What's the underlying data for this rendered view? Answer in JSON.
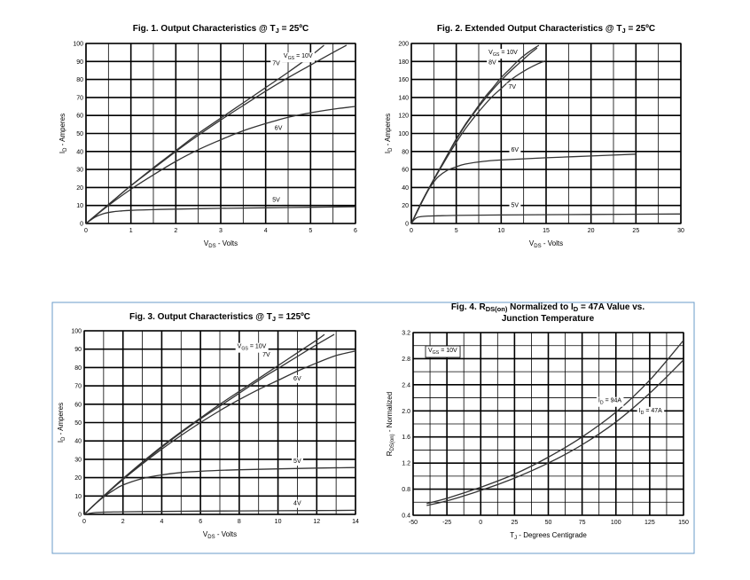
{
  "colors": {
    "frame": "#6a9bc9",
    "grid": "#000000",
    "curve": "#333333"
  },
  "chart_data": [
    {
      "type": "line",
      "title": "Fig. 1. Output Characteristics @ T",
      "title_sub": "J",
      "title_tail": " = 25ºC",
      "xlabel": "V",
      "xlabel_sub": "DS",
      "xlabel_tail": " - Volts",
      "ylabel": "I",
      "ylabel_sub": "D",
      "ylabel_tail": " - Amperes",
      "xlim": [
        0,
        6
      ],
      "ylim": [
        0,
        100
      ],
      "x_ticks": [
        0,
        1,
        2,
        3,
        4,
        5,
        6
      ],
      "y_ticks": [
        0,
        10,
        20,
        30,
        40,
        50,
        60,
        70,
        80,
        90,
        100
      ],
      "grid_x_step": 0.5,
      "grid_y_step": 10,
      "series": [
        {
          "name": "VGS = 10V",
          "x": [
            0,
            0.5,
            1,
            1.5,
            2,
            2.5,
            3,
            3.5,
            4,
            4.5,
            5,
            5.3
          ],
          "y": [
            0,
            10.5,
            21,
            31,
            40.5,
            50,
            58.5,
            67,
            75.5,
            84,
            93,
            99
          ]
        },
        {
          "name": "7V",
          "x": [
            0,
            0.5,
            1,
            1.5,
            2,
            2.5,
            3,
            3.5,
            4,
            4.5,
            5,
            5.5,
            5.8
          ],
          "y": [
            0,
            10.5,
            21,
            30.5,
            40,
            49,
            57.5,
            65.5,
            73.5,
            81,
            88,
            95,
            99
          ]
        },
        {
          "name": "6V",
          "x": [
            0,
            0.5,
            1,
            1.5,
            2,
            2.5,
            3,
            3.5,
            4,
            4.5,
            5,
            5.5,
            6
          ],
          "y": [
            0,
            10,
            19,
            27,
            34.5,
            41,
            46.5,
            51.5,
            55.5,
            59,
            61.5,
            63.5,
            65
          ]
        },
        {
          "name": "5V",
          "x": [
            0,
            0.2,
            0.4,
            0.6,
            0.8,
            1,
            1.5,
            2,
            3,
            4,
            5,
            6
          ],
          "y": [
            0,
            3.5,
            5.5,
            6.5,
            7,
            7.3,
            7.7,
            8,
            8.4,
            8.7,
            9,
            9.3
          ]
        }
      ],
      "labels": [
        {
          "text": "V",
          "sub": "GS",
          "tail": " = 10V",
          "x": 4.4,
          "y": 92,
          "legend": false
        },
        {
          "text": "7V",
          "x": 4.15,
          "y": 88
        },
        {
          "text": "6V",
          "x": 4.2,
          "y": 52
        },
        {
          "text": "5V",
          "x": 4.15,
          "y": 12
        }
      ]
    },
    {
      "type": "line",
      "title": "Fig. 2. Extended Output Characteristics @ T",
      "title_sub": "J",
      "title_tail": " = 25ºC",
      "xlabel": "V",
      "xlabel_sub": "DS",
      "xlabel_tail": " - Volts",
      "ylabel": "I",
      "ylabel_sub": "D",
      "ylabel_tail": " - Amperes",
      "xlim": [
        0,
        30
      ],
      "ylim": [
        0,
        200
      ],
      "x_ticks": [
        0,
        5,
        10,
        15,
        20,
        25,
        30
      ],
      "y_ticks": [
        0,
        20,
        40,
        60,
        80,
        100,
        120,
        140,
        160,
        180,
        200
      ],
      "grid_x_step": 2.5,
      "grid_y_step": 20,
      "series": [
        {
          "name": "VGS = 10V",
          "x": [
            0,
            1,
            2,
            3,
            4,
            5,
            6,
            7,
            8,
            9,
            10,
            11,
            12,
            13,
            14.2
          ],
          "y": [
            0,
            21,
            40,
            58,
            76,
            94,
            110,
            124,
            138,
            150,
            162,
            172,
            182,
            190,
            198
          ]
        },
        {
          "name": "8V",
          "x": [
            0,
            1,
            2,
            3,
            4,
            5,
            6,
            7,
            8,
            9,
            10,
            11,
            12,
            13,
            14
          ],
          "y": [
            0,
            21,
            40,
            58,
            76,
            93,
            109,
            123,
            136,
            148,
            159,
            169,
            178,
            187,
            195
          ]
        },
        {
          "name": "7V",
          "x": [
            0,
            1,
            2,
            3,
            4,
            5,
            6,
            7,
            8,
            9,
            10,
            11,
            12,
            13,
            14,
            15
          ],
          "y": [
            0,
            20.5,
            39.5,
            57,
            74,
            90,
            105,
            118,
            130,
            141,
            150,
            159,
            166,
            172,
            177,
            181
          ]
        },
        {
          "name": "6V",
          "x": [
            0,
            0.5,
            1,
            1.5,
            2,
            2.5,
            3,
            4,
            5,
            6,
            8,
            10,
            15,
            20,
            25
          ],
          "y": [
            0,
            10,
            20,
            30,
            39,
            46,
            52,
            59,
            63,
            66,
            69,
            70.5,
            73,
            75,
            77
          ]
        },
        {
          "name": "5V",
          "x": [
            0,
            0.3,
            0.6,
            1,
            1.5,
            2,
            3,
            5,
            10,
            20,
            30
          ],
          "y": [
            0,
            4,
            6.5,
            7.5,
            8,
            8.3,
            8.6,
            9,
            9.5,
            10,
            10.5
          ]
        }
      ],
      "labels": [
        {
          "text": "V",
          "sub": "GS",
          "tail": " = 10V",
          "x": 8.6,
          "y": 188,
          "legend": false
        },
        {
          "text": "8V",
          "x": 8.6,
          "y": 177
        },
        {
          "text": "7V",
          "x": 10.8,
          "y": 150
        },
        {
          "text": "6V",
          "x": 11.1,
          "y": 80
        },
        {
          "text": "5V",
          "x": 11.1,
          "y": 18
        }
      ]
    },
    {
      "type": "line",
      "title": "Fig. 3. Output Characteristics @ T",
      "title_sub": "J",
      "title_tail": " = 125ºC",
      "xlabel": "V",
      "xlabel_sub": "DS",
      "xlabel_tail": " - Volts",
      "ylabel": "I",
      "ylabel_sub": "D",
      "ylabel_tail": " - Amperes",
      "xlim": [
        0,
        14
      ],
      "ylim": [
        0,
        100
      ],
      "x_ticks": [
        0,
        2,
        4,
        6,
        8,
        10,
        12,
        14
      ],
      "y_ticks": [
        0,
        10,
        20,
        30,
        40,
        50,
        60,
        70,
        80,
        90,
        100
      ],
      "grid_x_step": 1,
      "grid_y_step": 10,
      "series": [
        {
          "name": "VGS = 10V",
          "x": [
            0,
            1,
            2,
            3,
            4,
            5,
            6,
            7,
            8,
            9,
            10,
            11,
            12,
            12.4
          ],
          "y": [
            0,
            10,
            19.5,
            28.5,
            37,
            45,
            52.5,
            60,
            67,
            74,
            81,
            88,
            95,
            98
          ]
        },
        {
          "name": "7V",
          "x": [
            0,
            1,
            2,
            3,
            4,
            5,
            6,
            7,
            8,
            9,
            10,
            11,
            12,
            12.9
          ],
          "y": [
            0,
            10,
            19.3,
            28,
            36.5,
            44.5,
            52,
            59,
            66,
            73,
            79.5,
            86,
            92.5,
            98
          ]
        },
        {
          "name": "6V",
          "x": [
            0,
            1,
            2,
            3,
            4,
            5,
            6,
            7,
            8,
            9,
            10,
            11,
            12,
            13,
            14
          ],
          "y": [
            0,
            9.8,
            19,
            27.5,
            35.5,
            43,
            50,
            56.5,
            62.5,
            68,
            73,
            78,
            82.5,
            86.5,
            89
          ]
        },
        {
          "name": "5V",
          "x": [
            0,
            0.5,
            1,
            1.5,
            2,
            3,
            4,
            5,
            6,
            8,
            10,
            12,
            14
          ],
          "y": [
            0,
            5,
            9.5,
            13,
            16,
            19.5,
            21.5,
            22.8,
            23.5,
            24.3,
            24.8,
            25.2,
            25.5
          ]
        },
        {
          "name": "4V",
          "x": [
            0,
            0.3,
            0.6,
            1,
            2,
            4,
            6,
            8,
            10,
            12,
            14
          ],
          "y": [
            0,
            0.6,
            1,
            1.2,
            1.4,
            1.6,
            1.8,
            1.9,
            2,
            2.1,
            2.2
          ]
        }
      ],
      "labels": [
        {
          "text": "V",
          "sub": "GS",
          "tail": " = 10V",
          "x": 7.9,
          "y": 90.5,
          "legend": false
        },
        {
          "text": "7V",
          "x": 9.2,
          "y": 86
        },
        {
          "text": "6V",
          "x": 10.8,
          "y": 73
        },
        {
          "text": "5V",
          "x": 10.8,
          "y": 28
        },
        {
          "text": "4V",
          "x": 10.8,
          "y": 5
        }
      ]
    },
    {
      "type": "line",
      "title": "Fig. 4. R",
      "title_sub": "DS(on)",
      "title_tail": " Normalized to I",
      "title_sub2": "D",
      "title_tail2": " = 47A Value vs.",
      "title_line2": "Junction Temperature",
      "xlabel": "T",
      "xlabel_sub": "J",
      "xlabel_tail": " - Degrees Centigrade",
      "ylabel": "R",
      "ylabel_sub": "DS(on)",
      "ylabel_tail": " - Normalized",
      "xlim": [
        -50,
        150
      ],
      "ylim": [
        0.4,
        3.2
      ],
      "x_ticks": [
        -50,
        -25,
        0,
        25,
        50,
        75,
        100,
        125,
        150
      ],
      "y_ticks": [
        0.4,
        0.8,
        1.2,
        1.6,
        2.0,
        2.4,
        2.8,
        3.2
      ],
      "y_tick_labels": [
        "0.4",
        "0.8",
        "1.2",
        "1.6",
        "2.0",
        "2.4",
        "2.8",
        "3.2"
      ],
      "grid_x_step": 12.5,
      "grid_y_step": 0.2,
      "series": [
        {
          "name": "ID = 94A",
          "x": [
            -40,
            -25,
            0,
            25,
            50,
            75,
            100,
            125,
            150
          ],
          "y": [
            0.58,
            0.66,
            0.83,
            1.03,
            1.29,
            1.6,
            1.98,
            2.47,
            3.08
          ]
        },
        {
          "name": "ID = 47A",
          "x": [
            -40,
            -25,
            0,
            25,
            50,
            75,
            100,
            125,
            150
          ],
          "y": [
            0.55,
            0.62,
            0.78,
            0.97,
            1.2,
            1.48,
            1.83,
            2.27,
            2.78
          ]
        }
      ],
      "labels": [
        {
          "text": "I",
          "sub": "D",
          "tail": " = 94A",
          "x": 87,
          "y": 2.13
        },
        {
          "text": "I",
          "sub": "D",
          "tail": " = 47A",
          "x": 117,
          "y": 1.98
        }
      ],
      "legend": {
        "text": "V",
        "sub": "GS",
        "tail": " = 10V"
      }
    }
  ]
}
